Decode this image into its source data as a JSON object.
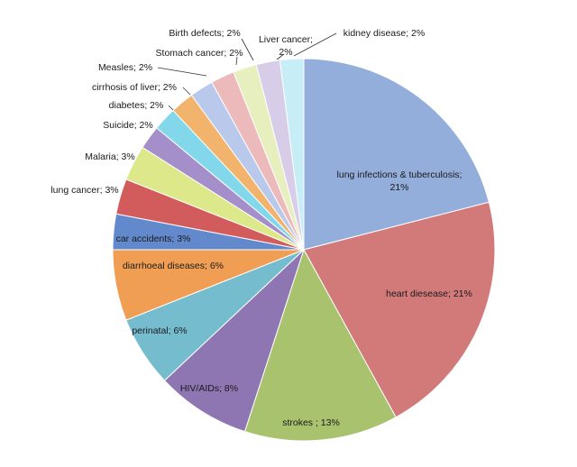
{
  "chart_data": {
    "type": "pie",
    "title": "",
    "start_angle_deg": 0,
    "direction": "clockwise",
    "slices": [
      {
        "label": "lung infections & tuberculosis",
        "value": 21,
        "text_lines": [
          "lung infections & tuberculosis;",
          "21%"
        ],
        "color": "#93aedb"
      },
      {
        "label": "heart diesease",
        "value": 21,
        "text_lines": [
          "heart diesease; 21%"
        ],
        "color": "#d27a7a"
      },
      {
        "label": "strokes",
        "value": 13,
        "text_lines": [
          "strokes ; 13%"
        ],
        "color": "#a9c26e"
      },
      {
        "label": "HIV/AIDs",
        "value": 8,
        "text_lines": [
          "HIV/AIDs; 8%"
        ],
        "color": "#8d76b1"
      },
      {
        "label": "perinatal",
        "value": 6,
        "text_lines": [
          "perinatal; 6%"
        ],
        "color": "#76bccf"
      },
      {
        "label": "diarrhoeal diseases",
        "value": 6,
        "text_lines": [
          "diarrhoeal diseases; 6%"
        ],
        "color": "#ef9e53"
      },
      {
        "label": "car accidents",
        "value": 3,
        "text_lines": [
          "car accidents; 3%"
        ],
        "color": "#6289cc"
      },
      {
        "label": "lung cancer",
        "value": 3,
        "text_lines": [
          "lung cancer; 3%"
        ],
        "color": "#d25c5c"
      },
      {
        "label": "Malaria",
        "value": 3,
        "text_lines": [
          "Malaria; 3%"
        ],
        "color": "#dde88a"
      },
      {
        "label": "Suicide",
        "value": 2,
        "text_lines": [
          "Suicide; 2%"
        ],
        "color": "#a58fcb"
      },
      {
        "label": "diabetes",
        "value": 2,
        "text_lines": [
          "diabetes; 2%"
        ],
        "color": "#82d8ea"
      },
      {
        "label": "cirrhosis of liver",
        "value": 2,
        "text_lines": [
          "cirrhosis of liver; 2%"
        ],
        "color": "#f2b36c"
      },
      {
        "label": "Measles",
        "value": 2,
        "text_lines": [
          "Measles; 2%"
        ],
        "color": "#b9c9ec"
      },
      {
        "label": "Stomach cancer",
        "value": 2,
        "text_lines": [
          "Stomach cancer; 2%"
        ],
        "color": "#ecbaba"
      },
      {
        "label": "Birth defects",
        "value": 2,
        "text_lines": [
          "Birth defects; 2%"
        ],
        "color": "#e7efbf"
      },
      {
        "label": "Liver cancer",
        "value": 2,
        "text_lines": [
          "Liver cancer;",
          "2%"
        ],
        "color": "#d7cde9"
      },
      {
        "label": "kidney disease",
        "value": 2,
        "text_lines": [
          "kidney disease; 2%"
        ],
        "color": "#c7eef7"
      }
    ]
  }
}
